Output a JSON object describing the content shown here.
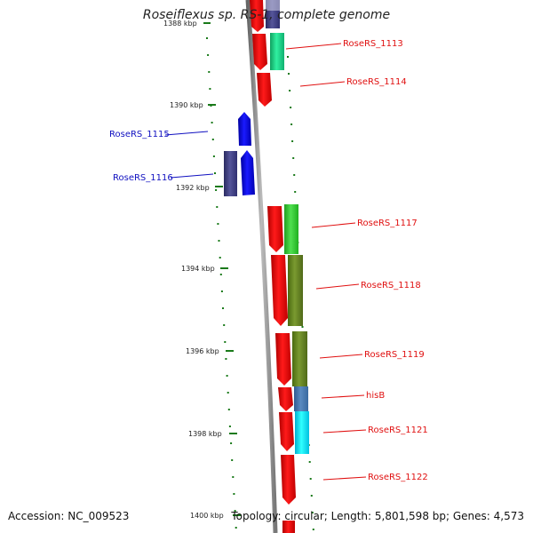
{
  "title": "Roseiflexus sp. RS-1, complete genome",
  "accession": "Accession: NC_009523",
  "summary": "Topology: circular; Length: 5,801,598 bp; Genes: 4,573",
  "ticks": [
    {
      "label": "1388 kbp"
    },
    {
      "label": "1390 kbp"
    },
    {
      "label": "1392 kbp"
    },
    {
      "label": "1394 kbp"
    },
    {
      "label": "1396 kbp"
    },
    {
      "label": "1398 kbp"
    },
    {
      "label": "1400 kbp"
    }
  ],
  "genes": [
    {
      "name": "RoseRS_1113",
      "strand": "right"
    },
    {
      "name": "RoseRS_1114",
      "strand": "right"
    },
    {
      "name": "RoseRS_1115",
      "strand": "left"
    },
    {
      "name": "RoseRS_1116",
      "strand": "left"
    },
    {
      "name": "RoseRS_1117",
      "strand": "right"
    },
    {
      "name": "RoseRS_1118",
      "strand": "right"
    },
    {
      "name": "RoseRS_1119",
      "strand": "right"
    },
    {
      "name": "hisB",
      "strand": "right"
    },
    {
      "name": "RoseRS_1121",
      "strand": "right"
    },
    {
      "name": "RoseRS_1122",
      "strand": "right"
    }
  ],
  "colors": {
    "forward_strand": "#ff0000",
    "reverse_strand": "#0000ff",
    "backbone": "#888888",
    "ticks": "#1a7a1a"
  }
}
